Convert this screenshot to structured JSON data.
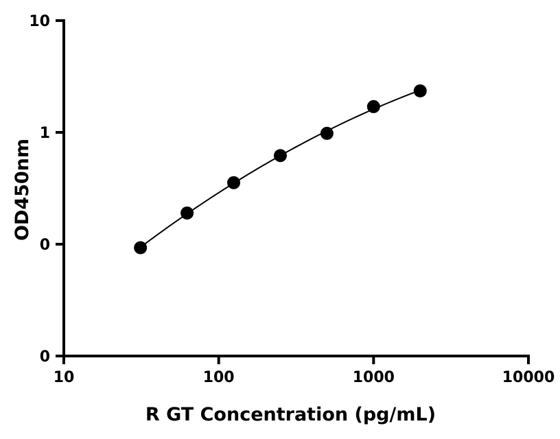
{
  "chart_data": {
    "type": "scatter",
    "xlabel": "R GT Concentration (pg/mL)",
    "ylabel": "OD450nm",
    "x_scale": "log",
    "y_scale": "log",
    "xlim": [
      10,
      10000
    ],
    "ylim": [
      0.01,
      10
    ],
    "x_ticks": [
      10,
      100,
      1000,
      10000
    ],
    "x_tick_labels": [
      "10",
      "100",
      "1000",
      "10000"
    ],
    "y_ticks": [
      0.01,
      0.1,
      1,
      10
    ],
    "y_tick_labels": [
      "0",
      "0",
      "1",
      "10"
    ],
    "grid": false,
    "series": [
      {
        "x": [
          31.25,
          62.5,
          125,
          250,
          500,
          1000,
          2000
        ],
        "y": [
          0.093,
          0.19,
          0.355,
          0.62,
          0.98,
          1.7,
          2.35
        ]
      }
    ],
    "fit_curve": true,
    "colors": {
      "marker": "#000000",
      "line": "#000000"
    }
  }
}
